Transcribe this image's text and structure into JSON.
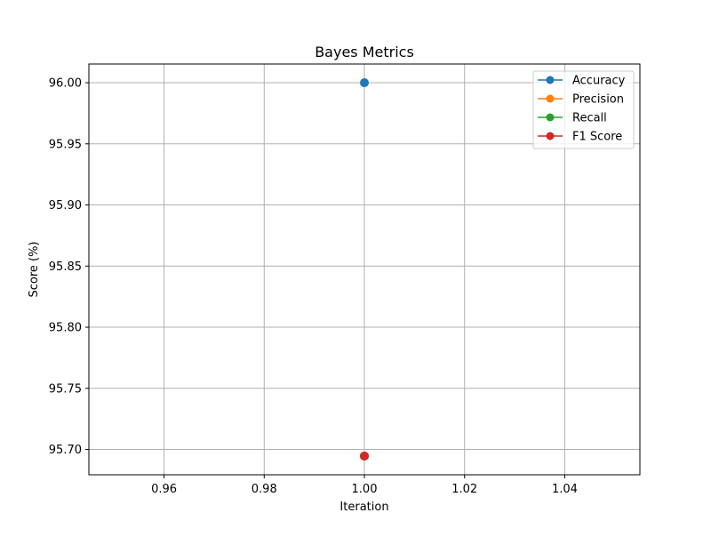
{
  "chart_data": {
    "type": "line",
    "title": "Bayes Metrics",
    "xlabel": "Iteration",
    "ylabel": "Score (%)",
    "xlim": [
      0.945,
      1.055
    ],
    "ylim": [
      95.6793,
      96.0153
    ],
    "xticks": [
      0.96,
      0.98,
      1.0,
      1.02,
      1.04
    ],
    "xtick_labels": [
      "0.96",
      "0.98",
      "1.00",
      "1.02",
      "1.04"
    ],
    "yticks": [
      95.7,
      95.75,
      95.8,
      95.85,
      95.9,
      95.95,
      96.0
    ],
    "ytick_labels": [
      "95.70",
      "95.75",
      "95.80",
      "95.85",
      "95.90",
      "95.95",
      "96.00"
    ],
    "grid": true,
    "legend_position": "top-right",
    "series": [
      {
        "name": "Accuracy",
        "color": "#1f77b4",
        "x": [
          1.0
        ],
        "y": [
          96.0
        ]
      },
      {
        "name": "Precision",
        "color": "#ff7f0e",
        "x": [
          1.0
        ],
        "y": [
          95.6946
        ]
      },
      {
        "name": "Recall",
        "color": "#2ca02c",
        "x": [
          1.0
        ],
        "y": [
          95.6946
        ]
      },
      {
        "name": "F1 Score",
        "color": "#d62728",
        "x": [
          1.0
        ],
        "y": [
          95.6946
        ]
      }
    ]
  }
}
